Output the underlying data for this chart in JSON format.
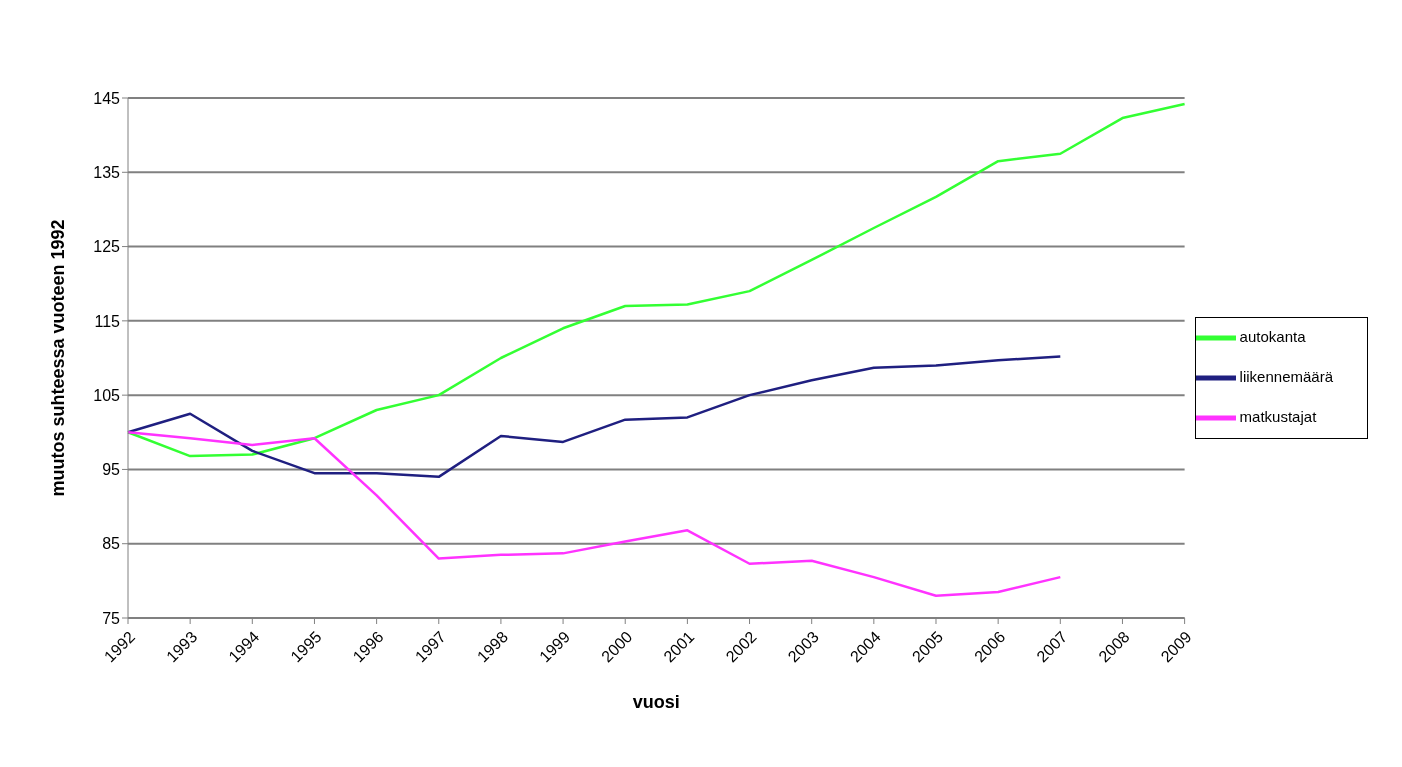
{
  "chart_data": {
    "type": "line",
    "xlabel": "vuosi",
    "ylabel": "muutos suhteessa vuoteen 1992",
    "categories": [
      "1992",
      "1993",
      "1994",
      "1995",
      "1996",
      "1997",
      "1998",
      "1999",
      "2000",
      "2001",
      "2002",
      "2003",
      "2004",
      "2005",
      "2006",
      "2007",
      "2008",
      "2009"
    ],
    "series": [
      {
        "name": "autokanta",
        "color": "#33ff33",
        "values": [
          100,
          96.8,
          97,
          99.2,
          103,
          105,
          110,
          114,
          117,
          117.2,
          119,
          123.2,
          127.5,
          131.7,
          136.5,
          137.5,
          142.3,
          144.2
        ]
      },
      {
        "name": "liikennemäärä",
        "color": "#1f1f80",
        "values": [
          100,
          102.5,
          97.5,
          94.5,
          94.5,
          94,
          99.5,
          98.7,
          101.7,
          102,
          105,
          107,
          108.7,
          109,
          109.7,
          110.2,
          null,
          null
        ]
      },
      {
        "name": "matkustajat",
        "color": "#ff33ff",
        "values": [
          100,
          99.2,
          98.3,
          99.2,
          91.5,
          83,
          83.5,
          83.7,
          85.3,
          86.8,
          82.3,
          82.7,
          80.5,
          78,
          78.5,
          80.5,
          null,
          null
        ]
      }
    ],
    "ylim": [
      75,
      145
    ],
    "yticks": [
      75,
      85,
      95,
      105,
      115,
      125,
      135,
      145
    ],
    "grid": "y",
    "legend": "right",
    "marker": "none",
    "line_style": "solid"
  }
}
